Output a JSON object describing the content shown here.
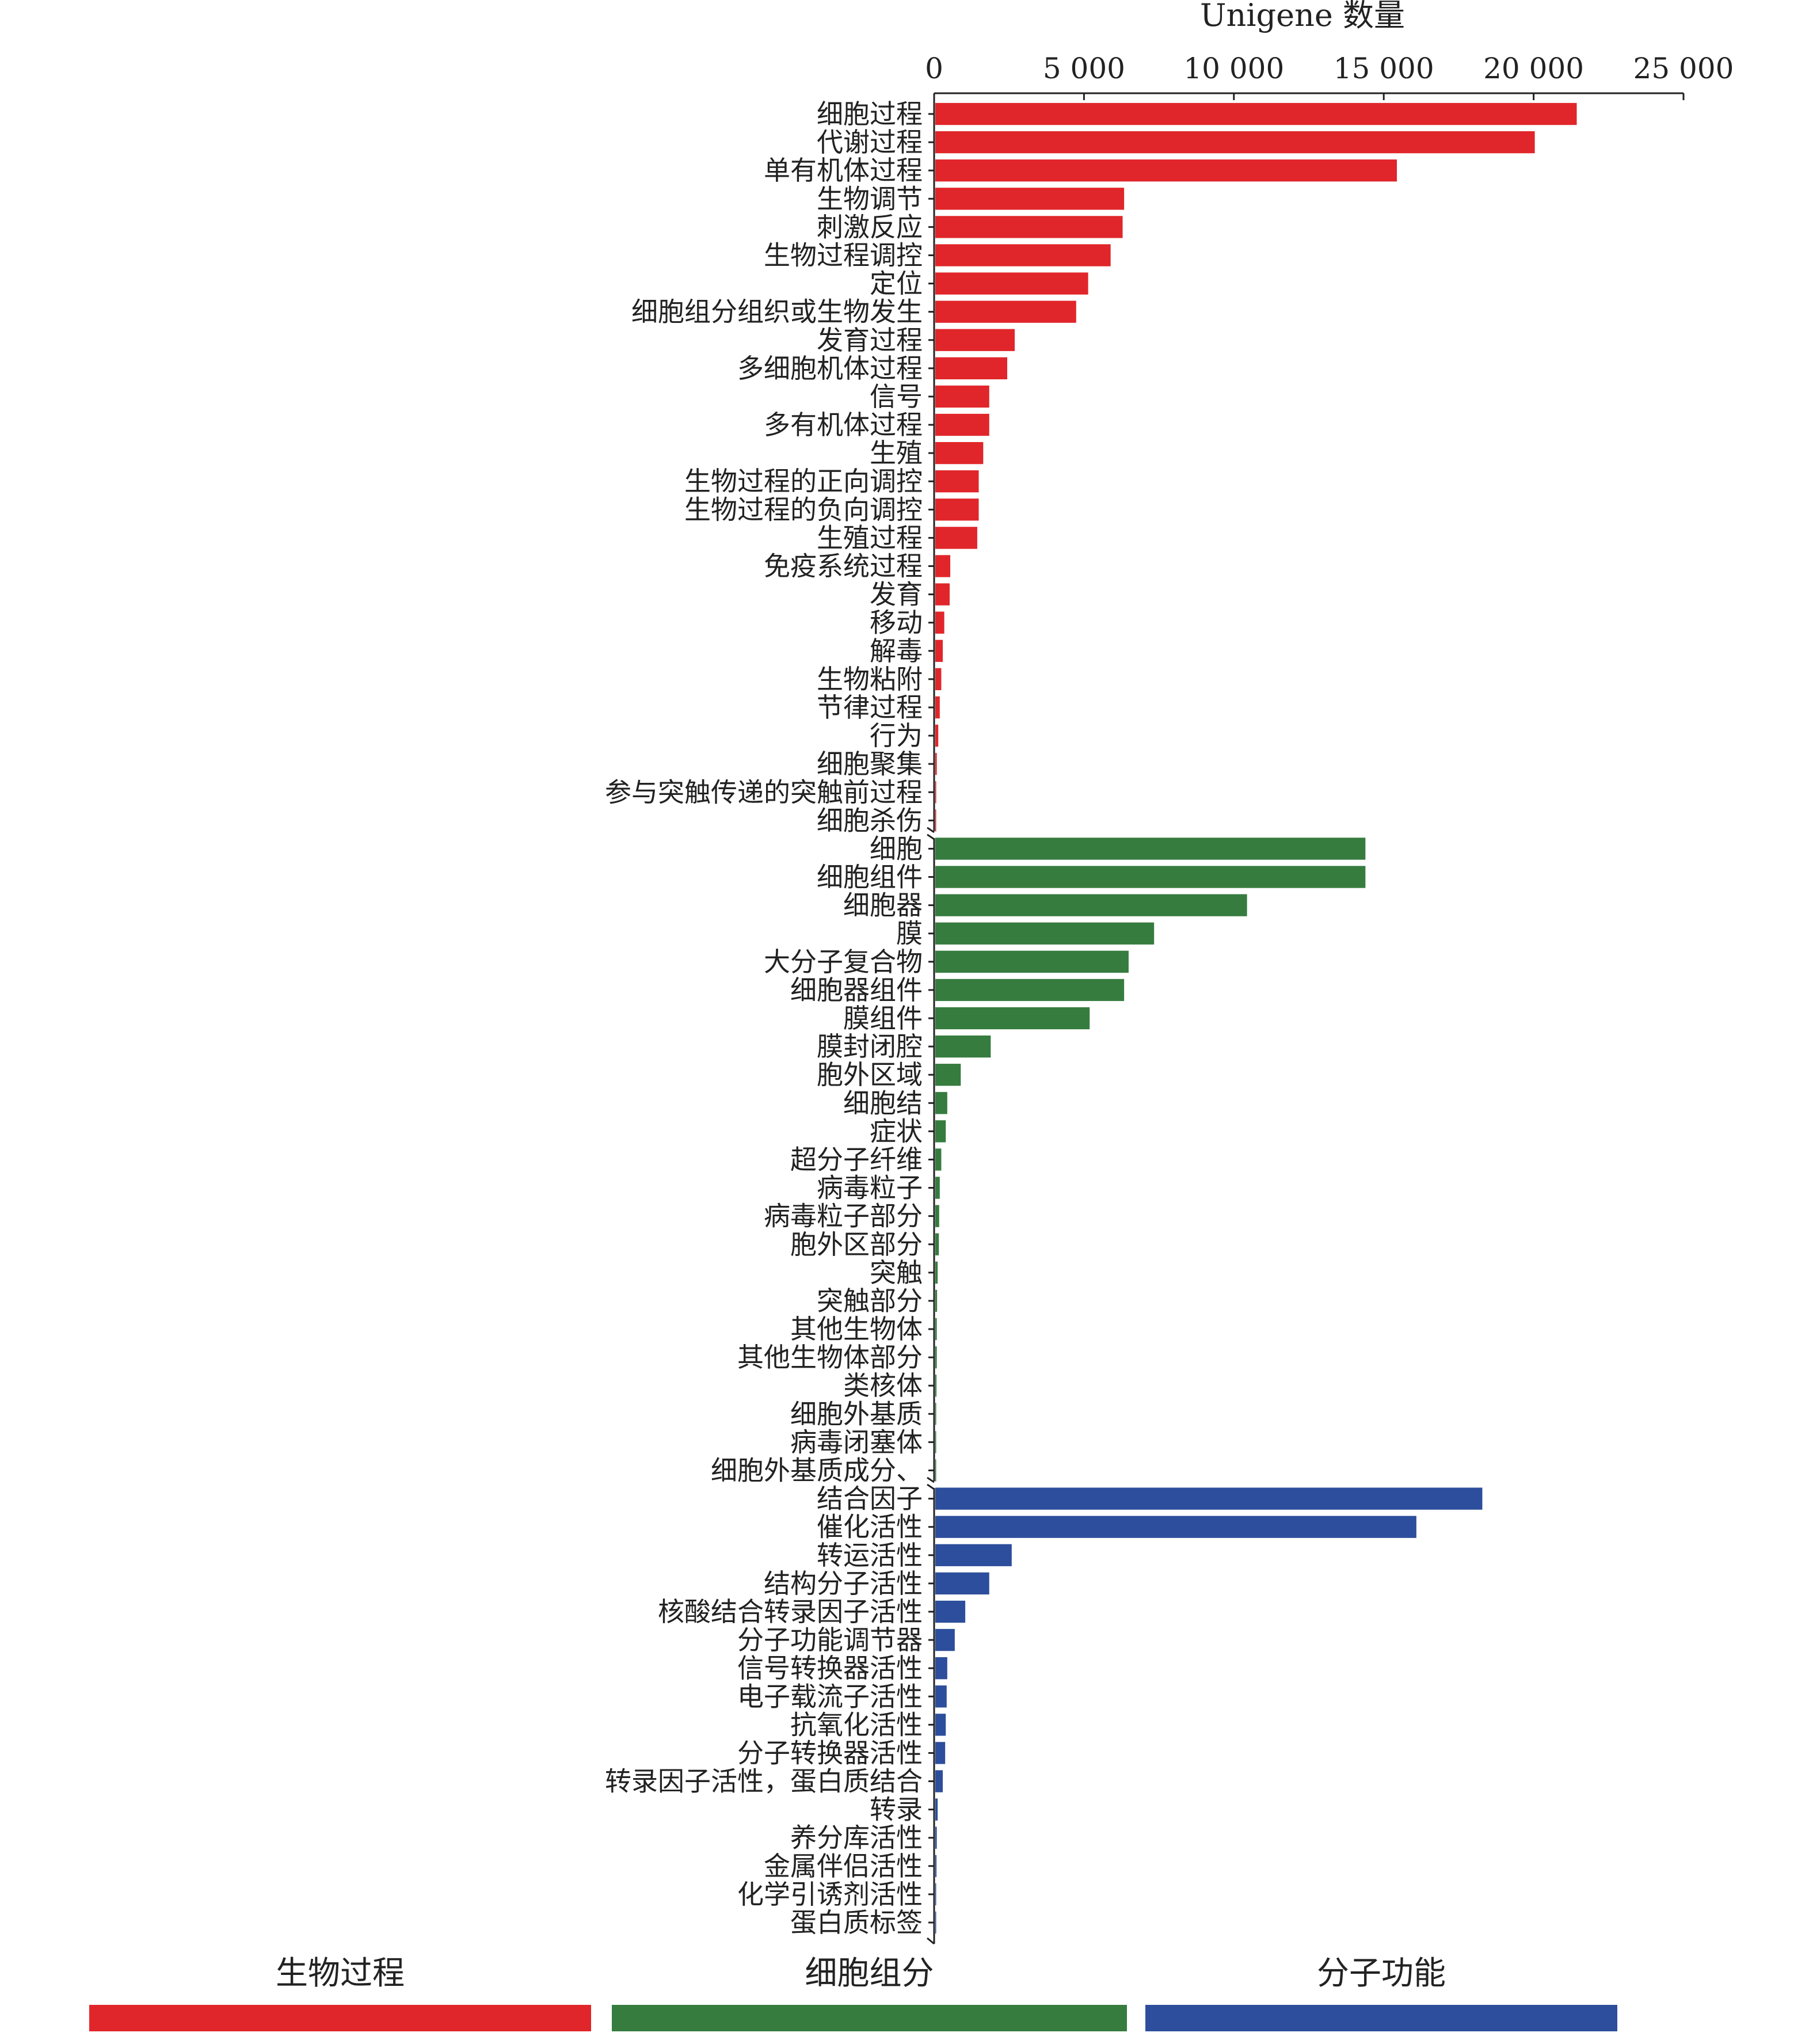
{
  "chart_data": {
    "type": "bar",
    "orientation": "horizontal",
    "xlabel": "Unigene 数量",
    "xlim": [
      0,
      25000
    ],
    "xticks": [
      0,
      5000,
      10000,
      15000,
      20000,
      25000
    ],
    "xtick_labels": [
      "0",
      "5 000",
      "10 000",
      "15 000",
      "20 000",
      "25 000"
    ],
    "x_axis_position": "top",
    "grid": false,
    "legend_position": "bottom",
    "groups": [
      {
        "name": "生物过程",
        "color": "#E0262A",
        "categories": [
          "细胞过程",
          "代谢过程",
          "单有机体过程",
          "生物调节",
          "刺激反应",
          "生物过程调控",
          "定位",
          "细胞组分组织或生物发生",
          "发育过程",
          "多细胞机体过程",
          "信号",
          "多有机体过程",
          "生殖",
          "生物过程的正向调控",
          "生物过程的负向调控",
          "生殖过程",
          "免疫系统过程",
          "发育",
          "移动",
          "解毒",
          "生物粘附",
          "节律过程",
          "行为",
          "细胞聚集",
          "参与突触传递的突触前过程",
          "细胞杀伤"
        ],
        "values": [
          21400,
          20000,
          15400,
          6300,
          6250,
          5850,
          5100,
          4700,
          2650,
          2400,
          1800,
          1800,
          1600,
          1450,
          1450,
          1400,
          500,
          480,
          300,
          250,
          200,
          150,
          100,
          50,
          30,
          20
        ]
      },
      {
        "name": "细胞组分",
        "color": "#367C3F",
        "categories": [
          "细胞",
          "细胞组件",
          "细胞器",
          "膜",
          "大分子复合物",
          "细胞器组件",
          "膜组件",
          "膜封闭腔",
          "胞外区域",
          "细胞结",
          "症状",
          "超分子纤维",
          "病毒粒子",
          "病毒粒子部分",
          "胞外区部分",
          "突触",
          "突触部分",
          "其他生物体",
          "其他生物体部分",
          "类核体",
          "细胞外基质",
          "病毒闭塞体",
          "细胞外基质成分、"
        ],
        "values": [
          14350,
          14350,
          10400,
          7300,
          6450,
          6300,
          5150,
          1850,
          850,
          400,
          350,
          200,
          150,
          130,
          120,
          80,
          60,
          50,
          50,
          40,
          30,
          20,
          10
        ]
      },
      {
        "name": "分子功能",
        "color": "#2D4E9C",
        "categories": [
          "结合因子",
          "催化活性",
          "转运活性",
          "结构分子活性",
          "核酸结合转录因子活性",
          "分子功能调节器",
          "信号转换器活性",
          "电子载流子活性",
          "抗氧化活性",
          "分子转换器活性",
          "转录因子活性，蛋白质结合",
          "转录",
          "养分库活性",
          "金属伴侣活性",
          "化学引诱剂活性",
          "蛋白质标签"
        ],
        "values": [
          18250,
          16050,
          2550,
          1800,
          1000,
          650,
          400,
          380,
          350,
          330,
          250,
          80,
          50,
          40,
          20,
          10
        ]
      }
    ]
  },
  "legend": {
    "items": [
      "生物过程",
      "细胞组分",
      "分子功能"
    ],
    "colors": [
      "#E0262A",
      "#367C3F",
      "#2D4E9C"
    ]
  }
}
